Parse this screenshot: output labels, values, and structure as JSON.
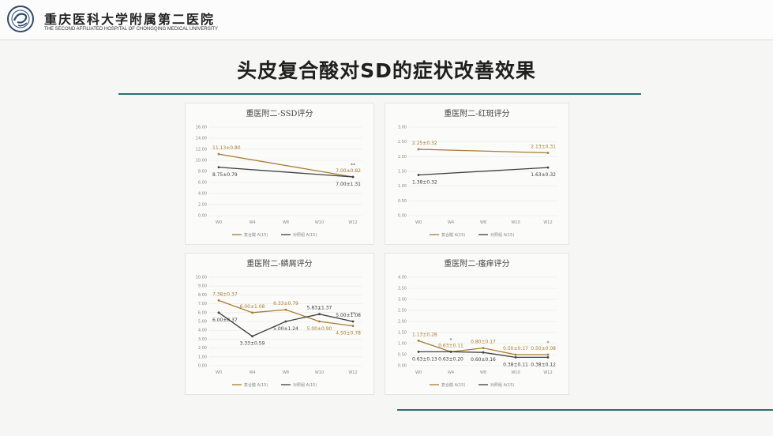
{
  "header": {
    "hospital_cn": "重庆医科大学附属第二医院",
    "hospital_en": "THE SECOND AFFILIATED HOSPITAL OF CHONGQING MEDICAL UNIVERSITY",
    "logo_icon": "hospital-emblem-icon",
    "logo_color": "#2e4b6e"
  },
  "slide": {
    "title": "头皮复合酸对SD的症状改善效果",
    "accent_color": "#2d6e6a"
  },
  "colors": {
    "series_a": "#a67c2e",
    "series_b": "#3f3f3f",
    "grid": "#e9e9e6"
  },
  "chart_data": [
    {
      "type": "line",
      "title": "重医附二-SSD评分",
      "categories": [
        "W0",
        "W4",
        "W8",
        "W10",
        "W12"
      ],
      "ylim": [
        0,
        16
      ],
      "yticks": [
        "0.00",
        "2.00",
        "4.00",
        "6.00",
        "8.00",
        "10.00",
        "12.00",
        "14.00",
        "16.00"
      ],
      "legend": [
        "复合酸 A(15)",
        "对照组 A(15)"
      ],
      "legend_position": "bottom",
      "grid": true,
      "series": [
        {
          "name": "复合酸 A(15)",
          "points": [
            [
              0,
              11.13
            ],
            [
              4,
              7.0
            ]
          ]
        },
        {
          "name": "对照组 A(15)",
          "points": [
            [
              0,
              8.75
            ],
            [
              4,
              7.0
            ]
          ]
        }
      ],
      "annotations": [
        {
          "text": "11.13±0.80",
          "cat": 0,
          "y": 11.13,
          "series": 0,
          "pos": "above"
        },
        {
          "text": "8.75±0.79",
          "cat": 0,
          "y": 8.75,
          "series": 1,
          "pos": "below"
        },
        {
          "text": "7.00±0.82",
          "cat": 4,
          "y": 7.0,
          "series": 0,
          "pos": "above"
        },
        {
          "text": "7.00±1.31",
          "cat": 4,
          "y": 7.0,
          "series": 1,
          "pos": "below"
        },
        {
          "text": "**",
          "cat": 4,
          "y": 7.0,
          "series": 0,
          "pos": "sig"
        }
      ]
    },
    {
      "type": "line",
      "title": "重医附二-红斑评分",
      "categories": [
        "W0",
        "W4",
        "W8",
        "W10",
        "W12"
      ],
      "ylim": [
        0,
        3
      ],
      "yticks": [
        "0.00",
        "0.50",
        "1.00",
        "1.50",
        "2.00",
        "2.50",
        "3.00"
      ],
      "legend": [
        "复合酸 A(15)",
        "对照组 A(15)"
      ],
      "legend_position": "bottom",
      "grid": true,
      "series": [
        {
          "name": "复合酸 A(15)",
          "points": [
            [
              0,
              2.25
            ],
            [
              4,
              2.13
            ]
          ]
        },
        {
          "name": "对照组 A(15)",
          "points": [
            [
              0,
              1.38
            ],
            [
              4,
              1.63
            ]
          ]
        }
      ],
      "annotations": [
        {
          "text": "2.25±0.32",
          "cat": 0,
          "y": 2.25,
          "series": 0,
          "pos": "above"
        },
        {
          "text": "1.38±0.32",
          "cat": 0,
          "y": 1.38,
          "series": 1,
          "pos": "below"
        },
        {
          "text": "2.13±0.31",
          "cat": 4,
          "y": 2.13,
          "series": 0,
          "pos": "above"
        },
        {
          "text": "1.63±0.32",
          "cat": 4,
          "y": 1.63,
          "series": 1,
          "pos": "below"
        }
      ]
    },
    {
      "type": "line",
      "title": "重医附二-鳞屑评分",
      "categories": [
        "W0",
        "W4",
        "W8",
        "W10",
        "W12"
      ],
      "ylim": [
        0,
        10
      ],
      "yticks": [
        "0.00",
        "1.00",
        "2.00",
        "3.00",
        "4.00",
        "5.00",
        "6.00",
        "7.00",
        "8.00",
        "9.00",
        "10.00"
      ],
      "legend": [
        "复合酸 A(15)",
        "对照组 A(15)"
      ],
      "legend_position": "bottom",
      "grid": true,
      "series": [
        {
          "name": "复合酸 A(15)",
          "points": [
            [
              0,
              7.38
            ],
            [
              1,
              6.0
            ],
            [
              2,
              6.33
            ],
            [
              3,
              5.0
            ],
            [
              4,
              4.5
            ]
          ]
        },
        {
          "name": "对照组 A(15)",
          "points": [
            [
              0,
              6.0
            ],
            [
              1,
              3.33
            ],
            [
              2,
              5.0
            ],
            [
              3,
              5.83
            ],
            [
              4,
              5.0
            ]
          ]
        }
      ],
      "annotations": [
        {
          "text": "7.38±0.37",
          "cat": 0,
          "y": 7.38,
          "series": 0,
          "pos": "above"
        },
        {
          "text": "6.00±0.37",
          "cat": 0,
          "y": 6.0,
          "series": 1,
          "pos": "below"
        },
        {
          "text": "6.00±1.08",
          "cat": 1,
          "y": 6.0,
          "series": 0,
          "pos": "above"
        },
        {
          "text": "3.33±0.59",
          "cat": 1,
          "y": 3.33,
          "series": 1,
          "pos": "below"
        },
        {
          "text": "6.33±0.79",
          "cat": 2,
          "y": 6.33,
          "series": 0,
          "pos": "above"
        },
        {
          "text": "5.00±1.24",
          "cat": 2,
          "y": 5.0,
          "series": 1,
          "pos": "below"
        },
        {
          "text": "5.83±1.37",
          "cat": 3,
          "y": 5.83,
          "series": 1,
          "pos": "above"
        },
        {
          "text": "5.00±0.90",
          "cat": 3,
          "y": 5.0,
          "series": 0,
          "pos": "below"
        },
        {
          "text": "5.00±1.08",
          "cat": 4,
          "y": 5.0,
          "series": 1,
          "pos": "above"
        },
        {
          "text": "4.50±0.78",
          "cat": 4,
          "y": 4.5,
          "series": 0,
          "pos": "below"
        },
        {
          "text": "*",
          "cat": 3,
          "y": 5.0,
          "series": 0,
          "pos": "sig"
        },
        {
          "text": "**",
          "cat": 4,
          "y": 4.5,
          "series": 0,
          "pos": "sig"
        }
      ]
    },
    {
      "type": "line",
      "title": "重医附二-瘙痒评分",
      "categories": [
        "W0",
        "W4",
        "W8",
        "W10",
        "W12"
      ],
      "ylim": [
        0,
        4
      ],
      "yticks": [
        "0.00",
        "0.50",
        "1.00",
        "1.50",
        "2.00",
        "2.50",
        "3.00",
        "3.50",
        "4.00"
      ],
      "legend": [
        "复合酸 A(15)",
        "对照组 A(15)"
      ],
      "legend_position": "bottom",
      "grid": true,
      "series": [
        {
          "name": "复合酸 A(15)",
          "points": [
            [
              0,
              1.13
            ],
            [
              1,
              0.63
            ],
            [
              2,
              0.8
            ],
            [
              3,
              0.5
            ],
            [
              4,
              0.5
            ]
          ]
        },
        {
          "name": "对照组 A(15)",
          "points": [
            [
              0,
              0.63
            ],
            [
              1,
              0.63
            ],
            [
              2,
              0.6
            ],
            [
              3,
              0.38
            ],
            [
              4,
              0.38
            ]
          ]
        }
      ],
      "annotations": [
        {
          "text": "1.13±0.28",
          "cat": 0,
          "y": 1.13,
          "series": 0,
          "pos": "above"
        },
        {
          "text": "0.63±0.13",
          "cat": 0,
          "y": 0.63,
          "series": 1,
          "pos": "below"
        },
        {
          "text": "0.63±0.11",
          "cat": 1,
          "y": 0.63,
          "series": 0,
          "pos": "above"
        },
        {
          "text": "0.63±0.20",
          "cat": 1,
          "y": 0.63,
          "series": 1,
          "pos": "below"
        },
        {
          "text": "0.80±0.17",
          "cat": 2,
          "y": 0.8,
          "series": 0,
          "pos": "above"
        },
        {
          "text": "0.60±0.16",
          "cat": 2,
          "y": 0.6,
          "series": 1,
          "pos": "below"
        },
        {
          "text": "0.50±0.17",
          "cat": 3,
          "y": 0.5,
          "series": 0,
          "pos": "above"
        },
        {
          "text": "0.38±0.11",
          "cat": 3,
          "y": 0.38,
          "series": 1,
          "pos": "below"
        },
        {
          "text": "0.50±0.08",
          "cat": 4,
          "y": 0.5,
          "series": 0,
          "pos": "above"
        },
        {
          "text": "0.38±0.12",
          "cat": 4,
          "y": 0.38,
          "series": 1,
          "pos": "below"
        },
        {
          "text": "*",
          "cat": 1,
          "y": 0.63,
          "series": 0,
          "pos": "sig"
        },
        {
          "text": "*",
          "cat": 4,
          "y": 0.5,
          "series": 0,
          "pos": "sig"
        }
      ]
    }
  ]
}
